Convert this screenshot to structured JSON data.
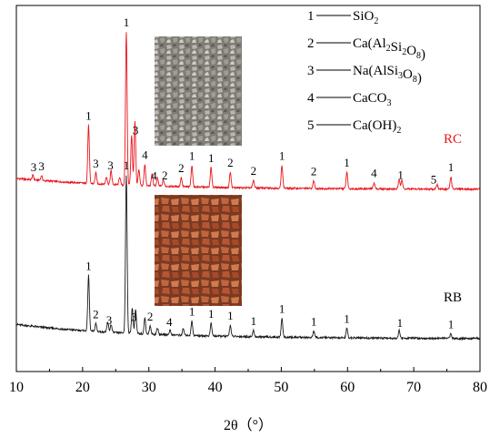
{
  "chart_data": {
    "type": "line",
    "xlabel": "2θ（°）",
    "ylabel": "",
    "xlim": [
      10,
      80
    ],
    "x_ticks": [
      10,
      20,
      30,
      40,
      50,
      60,
      70,
      80
    ],
    "grid": false,
    "legend_placement": "top-right",
    "legend": [
      {
        "number": "1",
        "formula": "SiO",
        "sub": "2",
        "rest": ""
      },
      {
        "number": "2",
        "formula": "Ca(Al",
        "sub": "2",
        "rest": "Si",
        "sub2": "2",
        "rest2": "O",
        "sub3": "8",
        "rest3": ")"
      },
      {
        "number": "3",
        "formula": "Na(AlSi",
        "sub": "3",
        "rest": "O",
        "sub2": "8",
        "rest2": ")"
      },
      {
        "number": "4",
        "formula": "CaCO",
        "sub": "3",
        "rest": ""
      },
      {
        "number": "5",
        "formula": "Ca(OH)",
        "sub": "2",
        "rest": ""
      }
    ],
    "series": [
      {
        "name": "RC",
        "color": "#e8141b",
        "baseline": 0.12,
        "peaks": [
          {
            "x": 12.5,
            "h": 0.03
          },
          {
            "x": 13.8,
            "h": 0.03
          },
          {
            "x": 20.9,
            "h": 0.38
          },
          {
            "x": 22.0,
            "h": 0.07
          },
          {
            "x": 23.6,
            "h": 0.05
          },
          {
            "x": 24.3,
            "h": 0.09
          },
          {
            "x": 25.6,
            "h": 0.05
          },
          {
            "x": 26.6,
            "h": 1.0
          },
          {
            "x": 27.4,
            "h": 0.33
          },
          {
            "x": 27.9,
            "h": 0.42
          },
          {
            "x": 28.5,
            "h": 0.1
          },
          {
            "x": 29.4,
            "h": 0.14
          },
          {
            "x": 30.5,
            "h": 0.08
          },
          {
            "x": 31.3,
            "h": 0.05
          },
          {
            "x": 32.2,
            "h": 0.04
          },
          {
            "x": 34.9,
            "h": 0.06
          },
          {
            "x": 36.5,
            "h": 0.14
          },
          {
            "x": 39.4,
            "h": 0.13
          },
          {
            "x": 42.3,
            "h": 0.1
          },
          {
            "x": 45.8,
            "h": 0.05
          },
          {
            "x": 50.1,
            "h": 0.15
          },
          {
            "x": 54.9,
            "h": 0.05
          },
          {
            "x": 59.9,
            "h": 0.11
          },
          {
            "x": 64.0,
            "h": 0.04
          },
          {
            "x": 67.8,
            "h": 0.06
          },
          {
            "x": 68.2,
            "h": 0.06
          },
          {
            "x": 73.5,
            "h": 0.03
          },
          {
            "x": 75.6,
            "h": 0.08
          }
        ],
        "peak_labels": [
          {
            "x": 12.6,
            "label": "3"
          },
          {
            "x": 13.8,
            "label": "3"
          },
          {
            "x": 20.9,
            "label": "1"
          },
          {
            "x": 22.0,
            "label": "3"
          },
          {
            "x": 24.2,
            "label": "3"
          },
          {
            "x": 26.6,
            "label": "1"
          },
          {
            "x": 28.0,
            "label": "3"
          },
          {
            "x": 29.4,
            "label": "4"
          },
          {
            "x": 30.8,
            "label": "4"
          },
          {
            "x": 32.4,
            "label": "2"
          },
          {
            "x": 34.9,
            "label": "2"
          },
          {
            "x": 36.5,
            "label": "1"
          },
          {
            "x": 39.4,
            "label": "1"
          },
          {
            "x": 42.3,
            "label": "2"
          },
          {
            "x": 45.8,
            "label": "2"
          },
          {
            "x": 50.1,
            "label": "1"
          },
          {
            "x": 54.9,
            "label": "2"
          },
          {
            "x": 59.9,
            "label": "1"
          },
          {
            "x": 64.0,
            "label": "4"
          },
          {
            "x": 68.0,
            "label": "1"
          },
          {
            "x": 73.0,
            "label": "5"
          },
          {
            "x": 75.6,
            "label": "1"
          }
        ]
      },
      {
        "name": "RB",
        "color": "#1a1a1a",
        "baseline": 0.15,
        "peaks": [
          {
            "x": 20.9,
            "h": 0.35
          },
          {
            "x": 22.0,
            "h": 0.05
          },
          {
            "x": 23.8,
            "h": 0.06
          },
          {
            "x": 24.3,
            "h": 0.05
          },
          {
            "x": 26.6,
            "h": 1.0
          },
          {
            "x": 27.5,
            "h": 0.16
          },
          {
            "x": 28.0,
            "h": 0.15
          },
          {
            "x": 29.4,
            "h": 0.1
          },
          {
            "x": 30.2,
            "h": 0.05
          },
          {
            "x": 31.3,
            "h": 0.04
          },
          {
            "x": 33.2,
            "h": 0.03
          },
          {
            "x": 35.2,
            "h": 0.04
          },
          {
            "x": 36.5,
            "h": 0.09
          },
          {
            "x": 39.4,
            "h": 0.08
          },
          {
            "x": 42.3,
            "h": 0.07
          },
          {
            "x": 45.8,
            "h": 0.04
          },
          {
            "x": 50.1,
            "h": 0.12
          },
          {
            "x": 54.9,
            "h": 0.04
          },
          {
            "x": 59.9,
            "h": 0.06
          },
          {
            "x": 67.8,
            "h": 0.05
          },
          {
            "x": 75.6,
            "h": 0.03
          }
        ],
        "peak_labels": [
          {
            "x": 20.9,
            "label": "1"
          },
          {
            "x": 22.0,
            "label": "2"
          },
          {
            "x": 24.0,
            "label": "3"
          },
          {
            "x": 26.6,
            "label": "1"
          },
          {
            "x": 27.8,
            "label": "3"
          },
          {
            "x": 30.2,
            "label": "2"
          },
          {
            "x": 33.1,
            "label": "4"
          },
          {
            "x": 36.5,
            "label": "1"
          },
          {
            "x": 39.4,
            "label": "1"
          },
          {
            "x": 42.3,
            "label": "1"
          },
          {
            "x": 45.8,
            "label": "1"
          },
          {
            "x": 50.1,
            "label": "1"
          },
          {
            "x": 54.9,
            "label": "1"
          },
          {
            "x": 59.9,
            "label": "1"
          },
          {
            "x": 67.9,
            "label": "1"
          },
          {
            "x": 75.6,
            "label": "1"
          }
        ]
      }
    ]
  },
  "inset_images": [
    {
      "subject": "rc-aggregate-photo",
      "tone": "#8a8780"
    },
    {
      "subject": "rb-aggregate-photo",
      "tone": "#b05a3a"
    }
  ]
}
